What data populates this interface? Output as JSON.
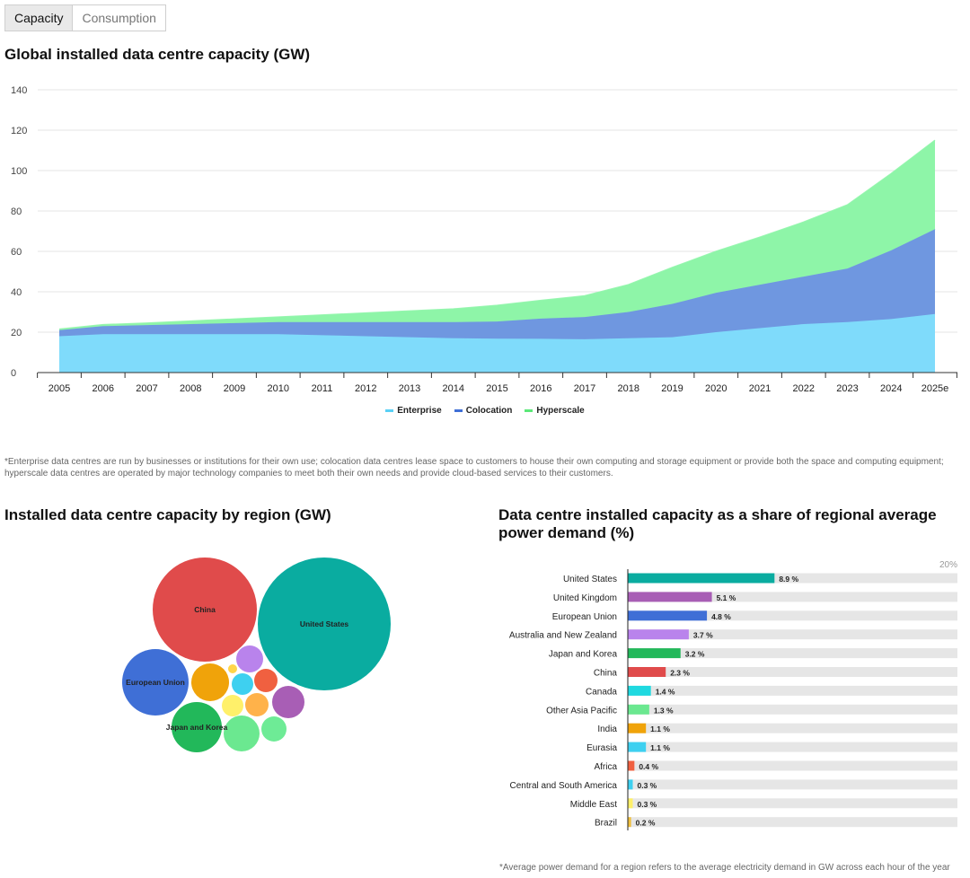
{
  "tabs": {
    "capacity": "Capacity",
    "consumption": "Consumption"
  },
  "chart1_title": "Global installed data centre capacity (GW)",
  "chart1_note": "*Enterprise data centres are run by businesses or institutions for their own use; colocation data centres lease space to customers to house their own computing and storage equipment or provide both the space and computing equipment; hyperscale data centres are operated by major technology companies to meet both their own needs and provide cloud-based services to their customers.",
  "chart2_title": "Installed data centre capacity by region (GW)",
  "chart3_title": "Data centre installed capacity as a share of regional average power demand (%)",
  "chart3_axis_max_label": "20%",
  "chart3_note": "*Average power demand for a region refers to the average electricity demand in GW across each hour of the year",
  "legend": [
    {
      "name": "Enterprise",
      "color": "#5ad0f5"
    },
    {
      "name": "Colocation",
      "color": "#3f6fd6"
    },
    {
      "name": "Hyperscale",
      "color": "#5ce878"
    }
  ],
  "chart_data": [
    {
      "type": "area",
      "stacked": true,
      "title": "Global installed data centre capacity (GW)",
      "x": [
        "2005",
        "2006",
        "2007",
        "2008",
        "2009",
        "2010",
        "2011",
        "2012",
        "2013",
        "2014",
        "2015",
        "2016",
        "2017",
        "2018",
        "2019",
        "2020",
        "2021",
        "2022",
        "2023",
        "2024",
        "2025e"
      ],
      "ylim": [
        0,
        140
      ],
      "yticks": [
        0,
        20,
        40,
        60,
        80,
        100,
        120,
        140
      ],
      "grid": true,
      "legend_position": "bottom",
      "series": [
        {
          "name": "Enterprise",
          "color": "#7fdbfb",
          "values": [
            18,
            19,
            19,
            19,
            19,
            19,
            18.5,
            18,
            17.5,
            17,
            16.8,
            16.7,
            16.5,
            17,
            17.5,
            20,
            22,
            24,
            25,
            26.5,
            29
          ]
        },
        {
          "name": "Colocation",
          "color": "#6f97e0",
          "values": [
            3,
            4,
            4.5,
            5,
            5.5,
            6,
            6.5,
            7,
            7.5,
            8,
            8.5,
            10,
            11,
            13,
            16.5,
            19.5,
            21.5,
            23.5,
            26.5,
            34,
            42
          ]
        },
        {
          "name": "Hyperscale",
          "color": "#8ef5a8",
          "values": [
            0.5,
            0.7,
            1,
            1.5,
            2,
            2.5,
            3.5,
            4.5,
            5.5,
            6.5,
            8,
            9,
            10.5,
            13.5,
            18,
            20.5,
            23.5,
            27,
            31.5,
            38,
            44
          ]
        }
      ]
    },
    {
      "type": "bubble",
      "title": "Installed data centre capacity by region (GW)",
      "bubbles": [
        {
          "label": "United States",
          "color": "#0aaca0"
        },
        {
          "label": "China",
          "color": "#e04b4b"
        },
        {
          "label": "European Union",
          "color": "#3f6fd6"
        },
        {
          "label": "Japan and Korea",
          "color": "#22b85a"
        },
        {
          "label": "",
          "color": "#f0a30a"
        },
        {
          "label": "",
          "color": "#a85eb5"
        },
        {
          "label": "",
          "color": "#b983ec"
        },
        {
          "label": "",
          "color": "#f06040"
        },
        {
          "label": "",
          "color": "#3ed0f0"
        },
        {
          "label": "",
          "color": "#6be890"
        },
        {
          "label": "",
          "color": "#fff06a"
        },
        {
          "label": "",
          "color": "#ffb24a"
        },
        {
          "label": "",
          "color": "#ffd54a"
        },
        {
          "label": "",
          "color": "#6eeb96"
        }
      ]
    },
    {
      "type": "bar",
      "orientation": "horizontal",
      "title": "Data centre installed capacity as a share of regional average power demand (%)",
      "xlim": [
        0,
        20
      ],
      "categories": [
        "United States",
        "United Kingdom",
        "European Union",
        "Australia and New Zealand",
        "Japan and Korea",
        "China",
        "Canada",
        "Other Asia Pacific",
        "India",
        "Eurasia",
        "Africa",
        "Central and South America",
        "Middle East",
        "Brazil"
      ],
      "values": [
        8.9,
        5.1,
        4.8,
        3.7,
        3.2,
        2.3,
        1.4,
        1.3,
        1.1,
        1.1,
        0.4,
        0.3,
        0.3,
        0.2
      ],
      "value_labels": [
        "8.9 %",
        "5.1 %",
        "4.8 %",
        "3.7 %",
        "3.2 %",
        "2.3 %",
        "1.4 %",
        "1.3 %",
        "1.1 %",
        "1.1 %",
        "0.4 %",
        "0.3 %",
        "0.3 %",
        "0.2 %"
      ],
      "colors": [
        "#0aaca0",
        "#a85eb5",
        "#3f6fd6",
        "#b983ec",
        "#22b85a",
        "#e04b4b",
        "#1fd9e0",
        "#6be890",
        "#f0a30a",
        "#3ed0f0",
        "#f06040",
        "#3ed0f0",
        "#fff06a",
        "#f0c040"
      ]
    }
  ]
}
